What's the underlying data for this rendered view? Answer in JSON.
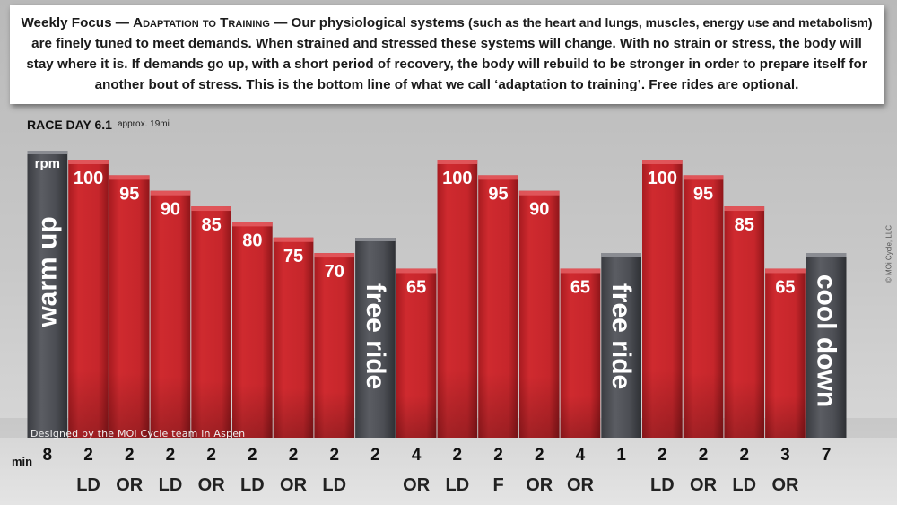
{
  "banner": {
    "weekly_focus": "Weekly Focus — ",
    "topic": "Adaptation to Training",
    "sep": " — Our physiological systems ",
    "paren": "(such as the heart and lungs, muscles, energy use and metabolism)",
    "rest": " are finely tuned to meet demands. When strained and stressed these systems will change. With no strain or stress, the body will stay where it is. If demands go up, with a short period of recovery, the body will rebuild to be stronger in order to prepare itself for another bout of stress. This is the bottom line of what we call ‘adaptation to training’.  Free rides are optional."
  },
  "header": {
    "race_day": "RACE DAY 6.1",
    "approx": "approx. 19mi"
  },
  "copyright": "© MOi Cycle, LLC",
  "credit": "Designed by the MOi Cycle team in Aspen",
  "min_label": "min",
  "rpm_label": "rpm",
  "colors": {
    "red": "#c8262b",
    "red_top": "#e25a5e",
    "gray": "#4a4c52",
    "gray_top": "#8a8c92"
  },
  "chart_data": {
    "type": "bar",
    "segments": [
      {
        "kind": "gray",
        "label": "warm up",
        "minutes": 8,
        "code": ""
      },
      {
        "kind": "red",
        "rpm": 100,
        "minutes": 2,
        "code": "LD"
      },
      {
        "kind": "red",
        "rpm": 95,
        "minutes": 2,
        "code": "OR"
      },
      {
        "kind": "red",
        "rpm": 90,
        "minutes": 2,
        "code": "LD"
      },
      {
        "kind": "red",
        "rpm": 85,
        "minutes": 2,
        "code": "OR"
      },
      {
        "kind": "red",
        "rpm": 80,
        "minutes": 2,
        "code": "LD"
      },
      {
        "kind": "red",
        "rpm": 75,
        "minutes": 2,
        "code": "OR"
      },
      {
        "kind": "red",
        "rpm": 70,
        "minutes": 2,
        "code": "LD"
      },
      {
        "kind": "gray",
        "label": "free ride",
        "minutes": 2,
        "code": ""
      },
      {
        "kind": "red",
        "rpm": 65,
        "minutes": 4,
        "code": "OR"
      },
      {
        "kind": "red",
        "rpm": 100,
        "minutes": 2,
        "code": "LD"
      },
      {
        "kind": "red",
        "rpm": 95,
        "minutes": 2,
        "code": "F"
      },
      {
        "kind": "red",
        "rpm": 90,
        "minutes": 2,
        "code": "OR"
      },
      {
        "kind": "red",
        "rpm": 65,
        "minutes": 4,
        "code": "OR"
      },
      {
        "kind": "gray",
        "label": "free ride",
        "minutes": 1,
        "code": ""
      },
      {
        "kind": "red",
        "rpm": 100,
        "minutes": 2,
        "code": "LD"
      },
      {
        "kind": "red",
        "rpm": 95,
        "minutes": 2,
        "code": "OR"
      },
      {
        "kind": "red",
        "rpm": 85,
        "minutes": 2,
        "code": "LD"
      },
      {
        "kind": "red",
        "rpm": 65,
        "minutes": 3,
        "code": "OR"
      },
      {
        "kind": "gray",
        "label": "cool down",
        "minutes": 7,
        "code": ""
      }
    ]
  }
}
